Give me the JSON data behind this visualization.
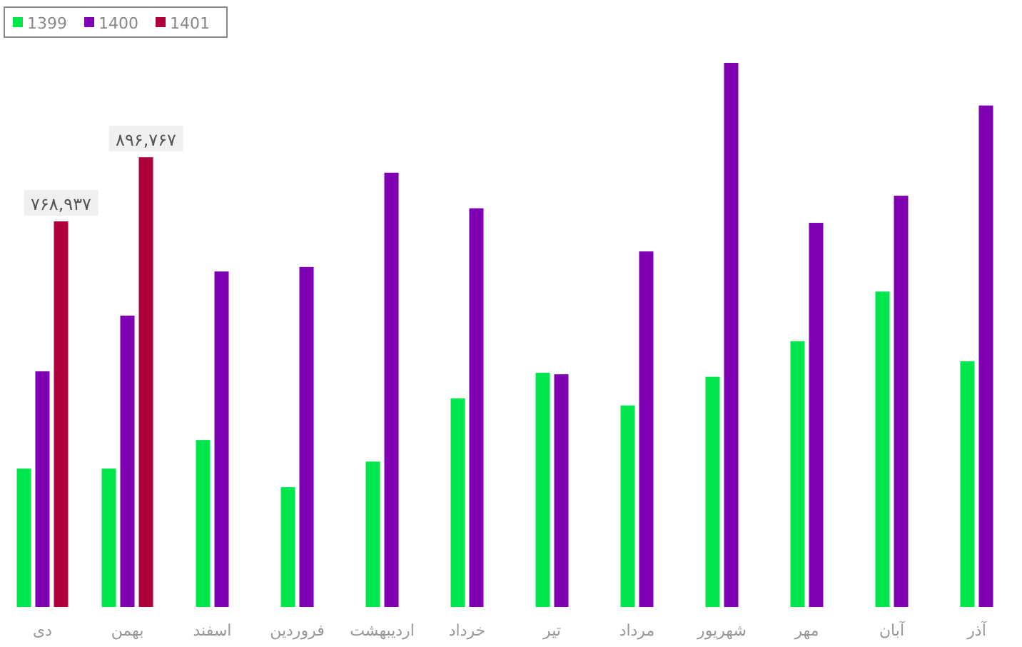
{
  "chart_data": {
    "type": "bar",
    "categories": [
      "دی",
      "بهمن",
      "اسفند",
      "فروردین",
      "اردیبهشت",
      "خرداد",
      "تیر",
      "مرداد",
      "شهریور",
      "مهر",
      "آبان",
      "آذر"
    ],
    "series": [
      {
        "name": "1399",
        "color": "#00e64d",
        "values": [
          276000,
          276000,
          333000,
          239000,
          290000,
          416000,
          467000,
          402000,
          459000,
          530000,
          629000,
          490000
        ]
      },
      {
        "name": "1400",
        "color": "#7f00b2",
        "values": [
          470000,
          581000,
          669000,
          678000,
          866000,
          795000,
          464000,
          709000,
          1085000,
          766000,
          820000,
          1000000
        ]
      },
      {
        "name": "1401",
        "color": "#b0003c",
        "values": [
          768937,
          896767,
          null,
          null,
          null,
          null,
          null,
          null,
          null,
          null,
          null,
          null
        ],
        "value_labels": [
          "۷۶۸,۹۳۷",
          "۸۹۶,۷۶۷",
          null,
          null,
          null,
          null,
          null,
          null,
          null,
          null,
          null,
          null
        ]
      }
    ],
    "tick_labels": "x",
    "legend": "top left"
  }
}
